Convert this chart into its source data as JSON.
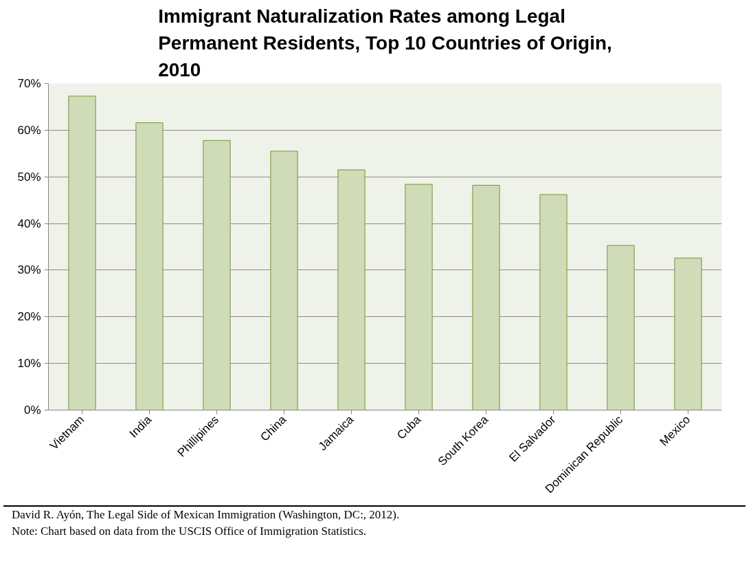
{
  "chart_data": {
    "type": "bar",
    "title": "Immigrant Naturalization Rates among Legal Permanent Residents, Top 10 Countries of Origin, 2010",
    "categories": [
      "Vietnam",
      "India",
      "Phillipines",
      "China",
      "Jamaica",
      "Cuba",
      "South Korea",
      "El Salvador",
      "Dominican Republic",
      "Mexico"
    ],
    "values": [
      67.3,
      61.6,
      57.8,
      55.5,
      51.5,
      48.4,
      48.2,
      46.2,
      35.3,
      32.6
    ],
    "color": "#cfdcb7",
    "ylim": [
      0,
      70
    ],
    "yticks": [
      {
        "value": 0,
        "label": "0%"
      },
      {
        "value": 10,
        "label": "10%"
      },
      {
        "value": 20,
        "label": "20%"
      },
      {
        "value": 30,
        "label": "30%"
      },
      {
        "value": 40,
        "label": "40%"
      },
      {
        "value": 50,
        "label": "50%"
      },
      {
        "value": 60,
        "label": "60%"
      },
      {
        "value": 70,
        "label": "70%"
      }
    ],
    "grid": "y",
    "annotations": [
      "David R. Ayón, The Legal Side of Mexican Immigration (Washington, DC:, 2012).",
      "Note: Chart based on data from the USCIS Office of Immigration Statistics."
    ]
  }
}
